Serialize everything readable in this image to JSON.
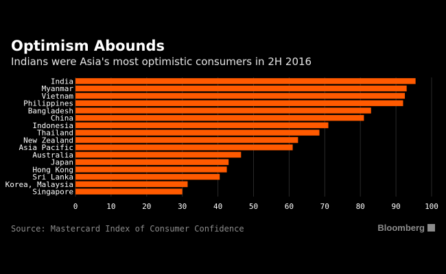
{
  "chart_data": {
    "type": "bar",
    "orientation": "horizontal",
    "title": "Optimism Abounds",
    "subtitle": "Indians were Asia's most optimistic consumers in 2H 2016",
    "categories": [
      "India",
      "Myanmar",
      "Vietnam",
      "Philippines",
      "Bangladesh",
      "China",
      "Indonesia",
      "Thailand",
      "New Zealand",
      "Asia Pacific",
      "Australia",
      "Japan",
      "Hong Kong",
      "Sri Lanka",
      "Korea, Malaysia",
      "Singapore"
    ],
    "values": [
      95.5,
      93,
      92.5,
      92,
      83,
      81,
      71,
      68.5,
      62.5,
      61,
      46.5,
      43,
      42.5,
      40.5,
      31.5,
      30
    ],
    "xlim": [
      0,
      100
    ],
    "xticks": [
      0,
      10,
      20,
      30,
      40,
      50,
      60,
      70,
      80,
      90,
      100
    ],
    "xlabel": "",
    "ylabel": "",
    "grid": "vertical",
    "bar_color": "#ff5a00"
  },
  "source": "Source: Mastercard Index of Consumer Confidence",
  "brand": "Bloomberg"
}
